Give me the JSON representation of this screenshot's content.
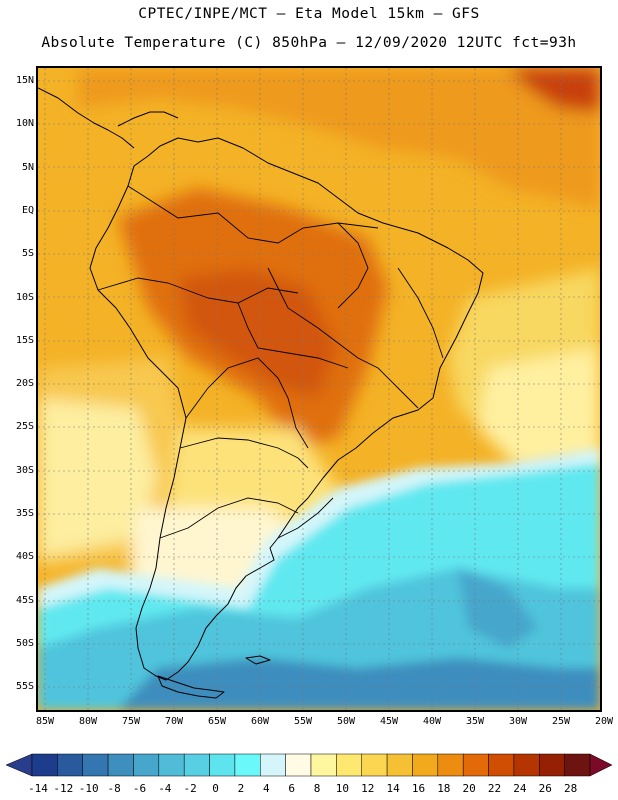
{
  "header": {
    "line1": "CPTEC/INPE/MCT –  Eta Model 15km – GFS",
    "line2": "Absolute Temperature (C) 850hPa – 12/09/2020 12UTC fct=93h"
  },
  "map": {
    "lat_labels": [
      "15N",
      "10N",
      "5N",
      "EQ",
      "5S",
      "10S",
      "15S",
      "20S",
      "25S",
      "30S",
      "35S",
      "40S",
      "45S",
      "50S",
      "55S"
    ],
    "lon_labels": [
      "85W",
      "80W",
      "75W",
      "70W",
      "65W",
      "60W",
      "55W",
      "50W",
      "45W",
      "40W",
      "35W",
      "30W",
      "25W",
      "20W"
    ]
  },
  "colorbar": {
    "labels": [
      "-14",
      "-12",
      "-10",
      "-8",
      "-6",
      "-4",
      "-2",
      "0",
      "2",
      "4",
      "6",
      "8",
      "10",
      "12",
      "14",
      "16",
      "18",
      "20",
      "22",
      "24",
      "26",
      "28"
    ],
    "under_color": "#2a3c8c",
    "over_color": "#7a0a28",
    "colors": [
      "#1e3c8c",
      "#2a5a9e",
      "#3476b0",
      "#3e8ebe",
      "#46a6cc",
      "#50bcd8",
      "#58d0e4",
      "#5ee4ee",
      "#6af8f8",
      "#d4f6fa",
      "#fffbe4",
      "#fff7a0",
      "#ffe870",
      "#fbd650",
      "#f6c034",
      "#f2aa1c",
      "#ec8c10",
      "#e26a08",
      "#d04e04",
      "#b43402",
      "#962004",
      "#6e1410"
    ]
  }
}
